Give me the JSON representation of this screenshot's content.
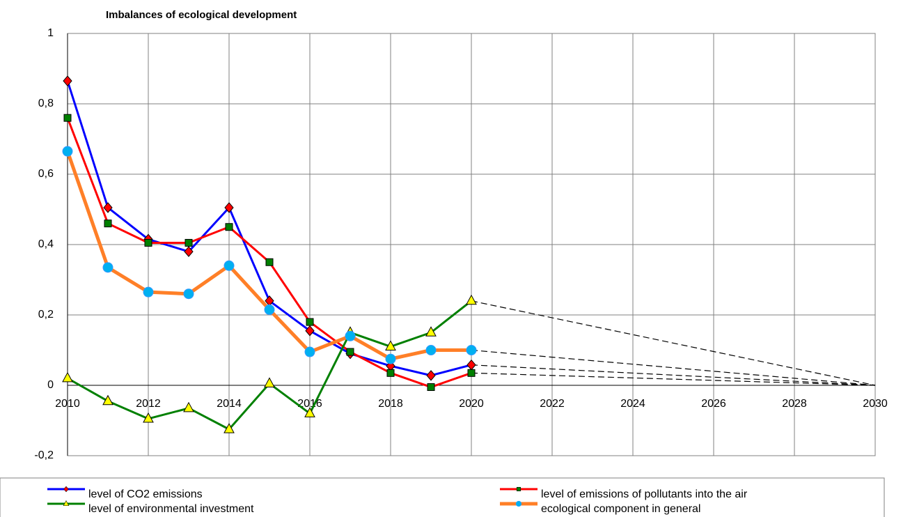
{
  "chart_data": {
    "type": "line",
    "title": "Imbalances of ecological development",
    "x": [
      2010,
      2011,
      2012,
      2013,
      2014,
      2015,
      2016,
      2017,
      2018,
      2019,
      2020
    ],
    "series": [
      {
        "name": "level of CO2 emissions",
        "color": "#0000ff",
        "marker": "diamond",
        "marker_color": "#ff0000",
        "values": [
          0.865,
          0.505,
          0.415,
          0.38,
          0.505,
          0.24,
          0.155,
          0.09,
          0.055,
          0.028,
          0.058
        ]
      },
      {
        "name": "level of emissions of pollutants into the air",
        "color": "#ff0000",
        "marker": "square",
        "marker_color": "#008000",
        "values": [
          0.76,
          0.46,
          0.405,
          0.405,
          0.45,
          0.35,
          0.18,
          0.095,
          0.035,
          -0.005,
          0.035
        ]
      },
      {
        "name": "level of environmental investment",
        "color": "#008000",
        "marker": "triangle",
        "marker_color": "#ffff00",
        "values": [
          0.02,
          -0.045,
          -0.095,
          -0.065,
          -0.125,
          0.005,
          -0.08,
          0.15,
          0.11,
          0.15,
          0.24
        ]
      },
      {
        "name": "ecological component in general",
        "color": "#ff7f27",
        "marker": "circle",
        "marker_color": "#00b0f0",
        "values": [
          0.665,
          0.335,
          0.265,
          0.26,
          0.34,
          0.215,
          0.095,
          0.14,
          0.075,
          0.1,
          0.1
        ]
      }
    ],
    "projection": {
      "x": 2030,
      "value": 0
    },
    "xlim": [
      2010,
      2030
    ],
    "xticks": [
      2010,
      2012,
      2014,
      2016,
      2018,
      2020,
      2022,
      2024,
      2026,
      2028,
      2030
    ],
    "ylim": [
      -0.2,
      1
    ],
    "yticks": [
      {
        "value": -0.2,
        "label": "-0,2"
      },
      0,
      {
        "value": 0.2,
        "label": "0,2"
      },
      {
        "value": 0.4,
        "label": "0,4"
      },
      {
        "value": 0.6,
        "label": "0,6"
      },
      {
        "value": 0.8,
        "label": "0,8"
      },
      1
    ],
    "grid": true
  }
}
